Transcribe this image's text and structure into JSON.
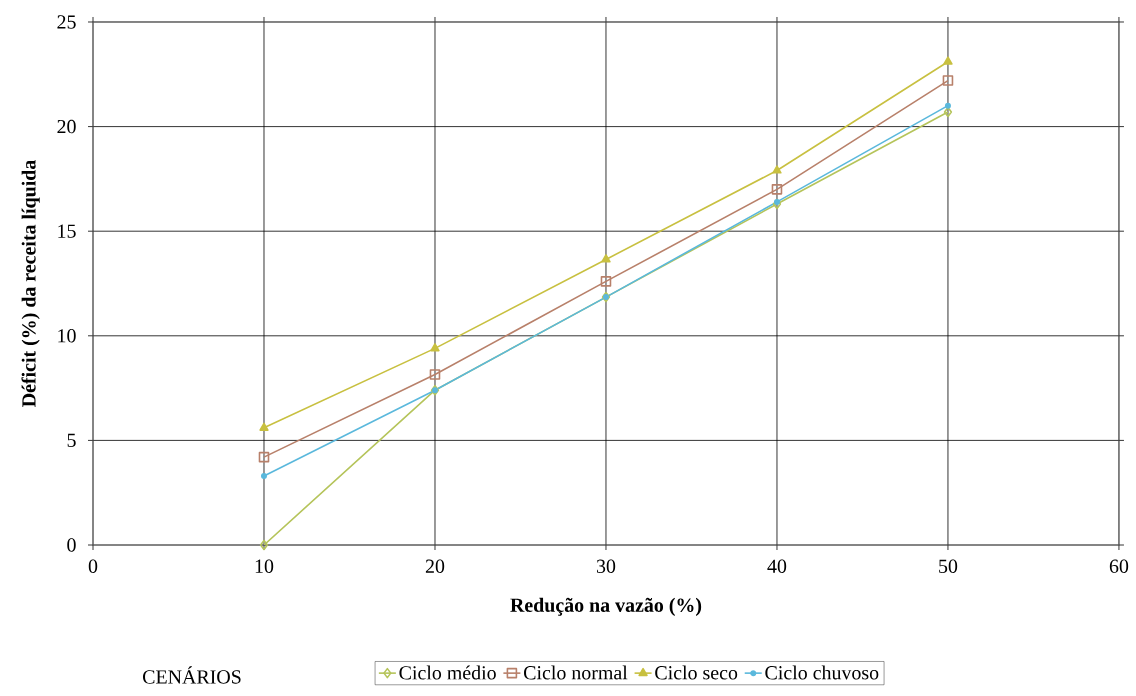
{
  "chart_data": {
    "type": "line",
    "xlabel": "Redução na vazão (%)",
    "ylabel": "Déficit (%) da receita líquida",
    "legend_title": "CENÁRIOS",
    "legend": "bottom",
    "grid": true,
    "x": [
      10,
      20,
      30,
      40,
      50
    ],
    "xlim": [
      0,
      60
    ],
    "xticks": [
      0,
      10,
      20,
      30,
      40,
      50,
      60
    ],
    "ylim": [
      0,
      25
    ],
    "yticks": [
      0,
      5,
      10,
      15,
      20,
      25
    ],
    "series": [
      {
        "name": "Ciclo médio",
        "color": "#b5c45a",
        "marker": "diamond",
        "values": [
          0,
          7.4,
          11.85,
          16.3,
          20.7
        ]
      },
      {
        "name": "Ciclo normal",
        "color": "#b8806a",
        "marker": "square",
        "values": [
          4.2,
          8.15,
          12.6,
          17.0,
          22.2
        ]
      },
      {
        "name": "Ciclo seco",
        "color": "#c8c040",
        "marker": "triangle",
        "values": [
          5.6,
          9.4,
          13.65,
          17.9,
          23.1
        ]
      },
      {
        "name": "Ciclo chuvoso",
        "color": "#5ab8dc",
        "marker": "circle",
        "values": [
          3.3,
          7.4,
          11.85,
          16.4,
          21.0
        ]
      }
    ]
  }
}
